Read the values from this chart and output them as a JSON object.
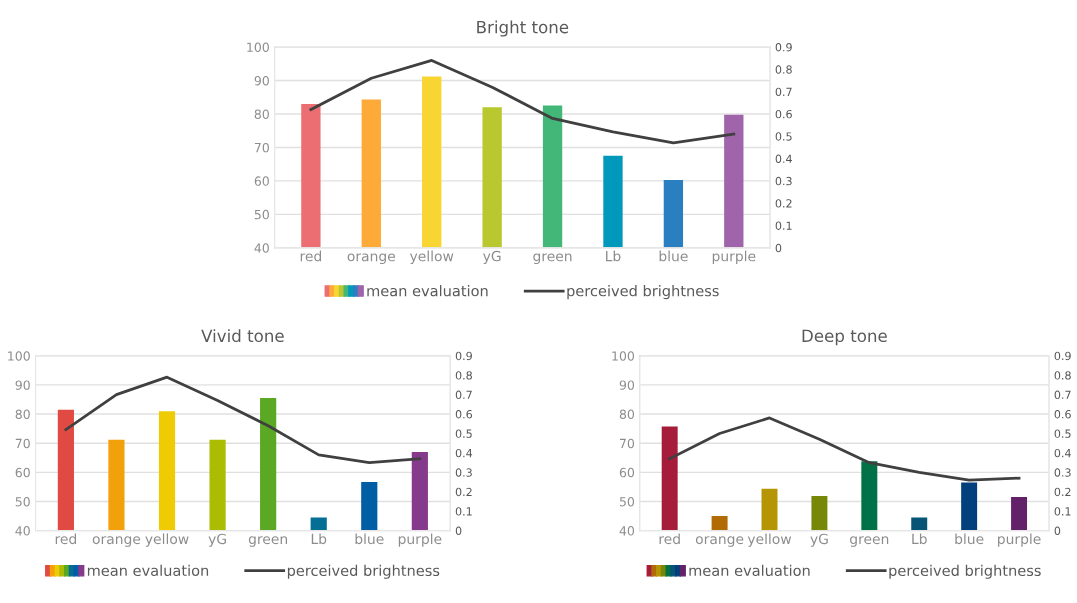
{
  "chart_data": [
    {
      "type": "bar",
      "title": "Bright tone",
      "categories": [
        "red",
        "orange",
        "yellow",
        "yG",
        "green",
        "Lb",
        "blue",
        "purple"
      ],
      "series": [
        {
          "name": "mean evaluation",
          "colors": [
            "#ed6e72",
            "#fdaa38",
            "#f9d532",
            "#b8c82e",
            "#42b778",
            "#0199bb",
            "#2a7fc1",
            "#a064aa"
          ],
          "values": [
            83,
            84.3,
            91.2,
            82,
            82.5,
            67.5,
            60.3,
            79.8
          ]
        },
        {
          "name": "perceived brightness",
          "type": "line",
          "axis": "y2",
          "color": "#404040",
          "values": [
            0.62,
            0.76,
            0.84,
            0.72,
            0.58,
            0.52,
            0.47,
            0.51
          ]
        }
      ],
      "ylim": [
        40,
        100
      ],
      "yticks": [
        40,
        50,
        60,
        70,
        80,
        90,
        100
      ],
      "y2lim": [
        0,
        0.9
      ],
      "y2ticks": [
        0,
        0.1,
        0.2,
        0.3,
        0.4,
        0.5,
        0.6,
        0.7,
        0.8,
        0.9
      ],
      "grid": "y",
      "legend": "bottom"
    },
    {
      "type": "bar",
      "title": "Vivid tone",
      "categories": [
        "red",
        "orange",
        "yellow",
        "yG",
        "green",
        "Lb",
        "blue",
        "purple"
      ],
      "series": [
        {
          "name": "mean evaluation",
          "colors": [
            "#e04a42",
            "#f3a10a",
            "#eecb03",
            "#abbc03",
            "#5aa823",
            "#046e94",
            "#015da4",
            "#853a8c"
          ],
          "values": [
            81.5,
            71.2,
            81,
            71.2,
            85.5,
            44.5,
            56.7,
            67
          ]
        },
        {
          "name": "perceived brightness",
          "type": "line",
          "axis": "y2",
          "color": "#404040",
          "values": [
            0.52,
            0.7,
            0.79,
            0.67,
            0.54,
            0.39,
            0.35,
            0.37
          ]
        }
      ],
      "ylim": [
        40,
        100
      ],
      "yticks": [
        40,
        50,
        60,
        70,
        80,
        90,
        100
      ],
      "y2lim": [
        0,
        0.9
      ],
      "y2ticks": [
        0,
        0.1,
        0.2,
        0.3,
        0.4,
        0.5,
        0.6,
        0.7,
        0.8,
        0.9
      ],
      "grid": "y",
      "legend": "bottom"
    },
    {
      "type": "bar",
      "title": "Deep tone",
      "categories": [
        "red",
        "orange",
        "yellow",
        "yG",
        "green",
        "Lb",
        "blue",
        "purple"
      ],
      "series": [
        {
          "name": "mean evaluation",
          "colors": [
            "#a51d3b",
            "#b06b05",
            "#b69504",
            "#778707",
            "#017147",
            "#075575",
            "#013f7d",
            "#63216a"
          ],
          "values": [
            75.7,
            45,
            54.4,
            51.9,
            63.8,
            44.5,
            56.5,
            51.5
          ]
        },
        {
          "name": "perceived brightness",
          "type": "line",
          "axis": "y2",
          "color": "#404040",
          "values": [
            0.37,
            0.5,
            0.58,
            0.47,
            0.35,
            0.3,
            0.26,
            0.27
          ]
        }
      ],
      "ylim": [
        40,
        100
      ],
      "yticks": [
        40,
        50,
        60,
        70,
        80,
        90,
        100
      ],
      "y2lim": [
        0,
        0.9
      ],
      "y2ticks": [
        0,
        0.1,
        0.2,
        0.3,
        0.4,
        0.5,
        0.6,
        0.7,
        0.8,
        0.9
      ],
      "grid": "y",
      "legend": "bottom"
    }
  ]
}
